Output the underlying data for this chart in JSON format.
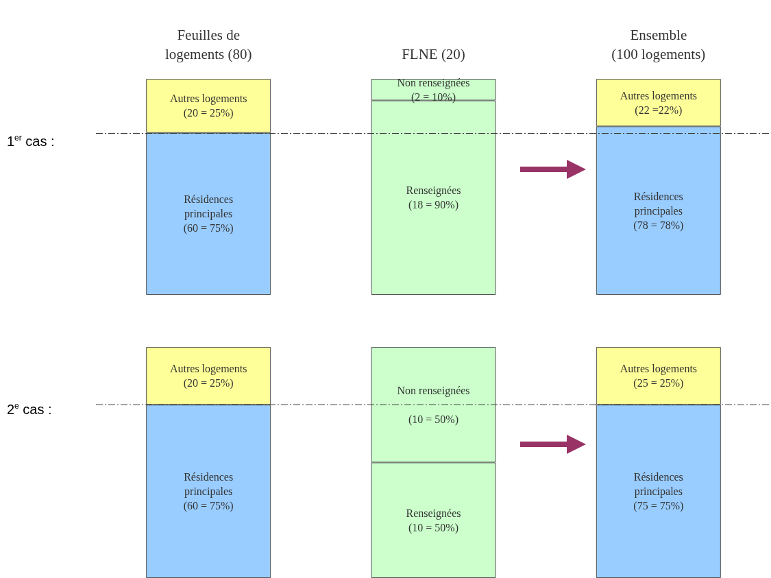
{
  "chart_data": [
    {
      "type": "bar",
      "stacked": true,
      "ylabel": "1$^{er}$ cas :",
      "categories": [
        "Feuilles de\nlogements (80)",
        "FLNE (20)",
        "Ensemble\n(100 logements)"
      ],
      "ylim": [
        0,
        100
      ],
      "tick_labels": "x",
      "series": [
        {
          "colors": [
            "#99ccff",
            "#ccffcc",
            "#99ccff"
          ],
          "values": [
            75,
            90,
            78
          ],
          "value_labels": [
            "Résidences\nprincipales\n(60 = 75%)",
            "Renseignées\n(18 = 90%)",
            "Résidences\nprincipales\n(78 = 78%)"
          ]
        },
        {
          "colors": [
            "#ffff99",
            "#ccffcc",
            "#ffff99"
          ],
          "values": [
            25,
            10,
            22
          ],
          "value_labels": [
            "Autres logements\n(20 = 25%)",
            "Non renseignées\n(2 = 10%)",
            "Autres logements\n(22 =22%)"
          ]
        }
      ],
      "ref_lines": [
        {
          "axis": "y",
          "value": 75,
          "line_style": "dashed",
          "color": "#333333"
        }
      ]
    },
    {
      "type": "bar",
      "stacked": true,
      "ylabel": "2$^{e}$ cas :",
      "categories": [
        null,
        null,
        null
      ],
      "ylim": [
        0,
        100
      ],
      "tick_labels": false,
      "series": [
        {
          "colors": [
            "#99ccff",
            "#ccffcc",
            "#99ccff"
          ],
          "values": [
            75,
            50,
            75
          ],
          "value_labels": [
            "Résidences\nprincipales\n(60 = 75%)",
            "Renseignées\n(10 = 50%)",
            "Résidences\nprincipales\n(75 = 75%)"
          ]
        },
        {
          "colors": [
            "#ffff99",
            "#ccffcc",
            "#ffff99"
          ],
          "values": [
            25,
            50,
            25
          ],
          "value_labels": [
            "Autres logements\n(20 = 25%)",
            "Non renseignées\n\n(10 = 50%)",
            "Autres logements\n(25 = 25%)"
          ]
        }
      ],
      "ref_lines": [
        {
          "axis": "y",
          "value": 75,
          "line_style": "dashed",
          "color": "#333333"
        }
      ]
    }
  ]
}
